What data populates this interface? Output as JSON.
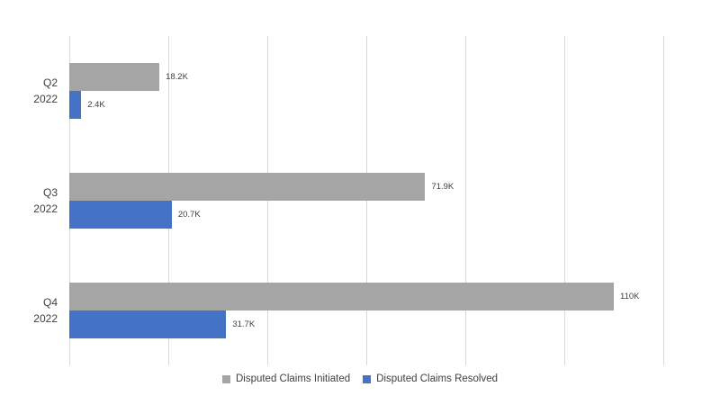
{
  "chart_data": {
    "type": "bar",
    "orientation": "horizontal",
    "title": "",
    "xlabel": "",
    "ylabel": "",
    "categories": [
      "Q2 2022",
      "Q3 2022",
      "Q4 2022"
    ],
    "category_lines": [
      [
        "Q2",
        "2022"
      ],
      [
        "Q3",
        "2022"
      ],
      [
        "Q4",
        "2022"
      ]
    ],
    "series": [
      {
        "name": "Disputed Claims Initiated",
        "color": "#A5A5A5",
        "values": [
          18200,
          71900,
          110000
        ],
        "labels": [
          "18.2K",
          "71.9K",
          "110K"
        ]
      },
      {
        "name": "Disputed Claims Resolved",
        "color": "#4472C4",
        "values": [
          2400,
          20700,
          31700
        ],
        "labels": [
          "2.4K",
          "20.7K",
          "31.7K"
        ]
      }
    ],
    "xlim": [
      0,
      120000
    ],
    "gridline_interval": 20000,
    "grid": true,
    "legend_position": "bottom",
    "colors": {
      "gridline": "#D9D9D9",
      "text": "#404040"
    }
  }
}
